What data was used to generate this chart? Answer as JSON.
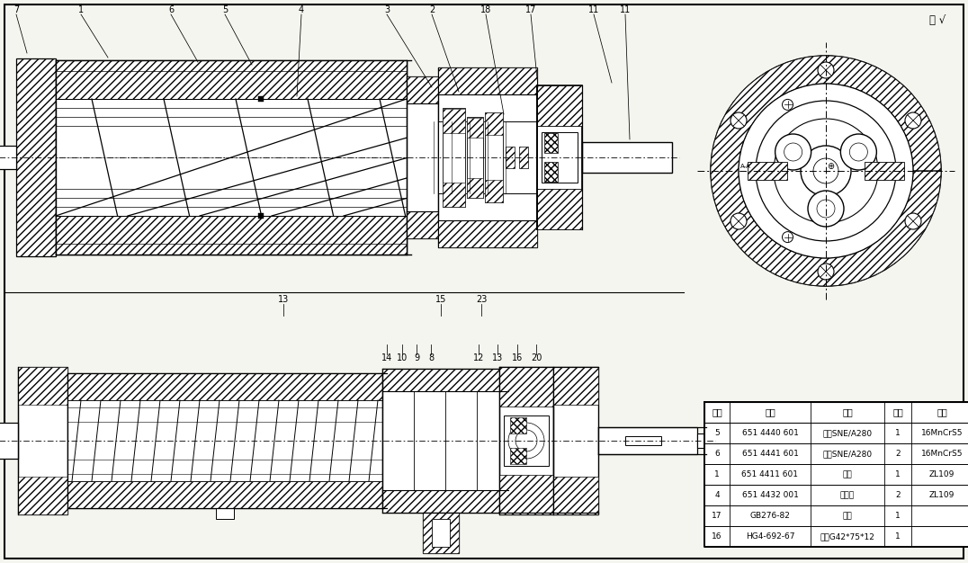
{
  "bg": "#f5f5f0",
  "lc": "#000000",
  "table_headers": [
    "序号",
    "代号",
    "名称",
    "件数",
    "材料"
  ],
  "table_rows": [
    [
      "5",
      "651 4440 601",
      "主桿SNE/A280",
      "1",
      "16MnCrS5"
    ],
    [
      "6",
      "651 4441 601",
      "從桿SNE/A280",
      "2",
      "16MnCrS5"
    ],
    [
      "1",
      "651 4411 601",
      "衬套",
      "1",
      "ZL109"
    ],
    [
      "4",
      "651 4432 001",
      "平衡套",
      "2",
      "ZL109"
    ],
    [
      "17",
      "GB276-82",
      "軸承",
      "1",
      ""
    ],
    [
      "16",
      "HG4-692-67",
      "鎖緊G42*75*12",
      "1",
      ""
    ]
  ],
  "stamp": "勘 √"
}
